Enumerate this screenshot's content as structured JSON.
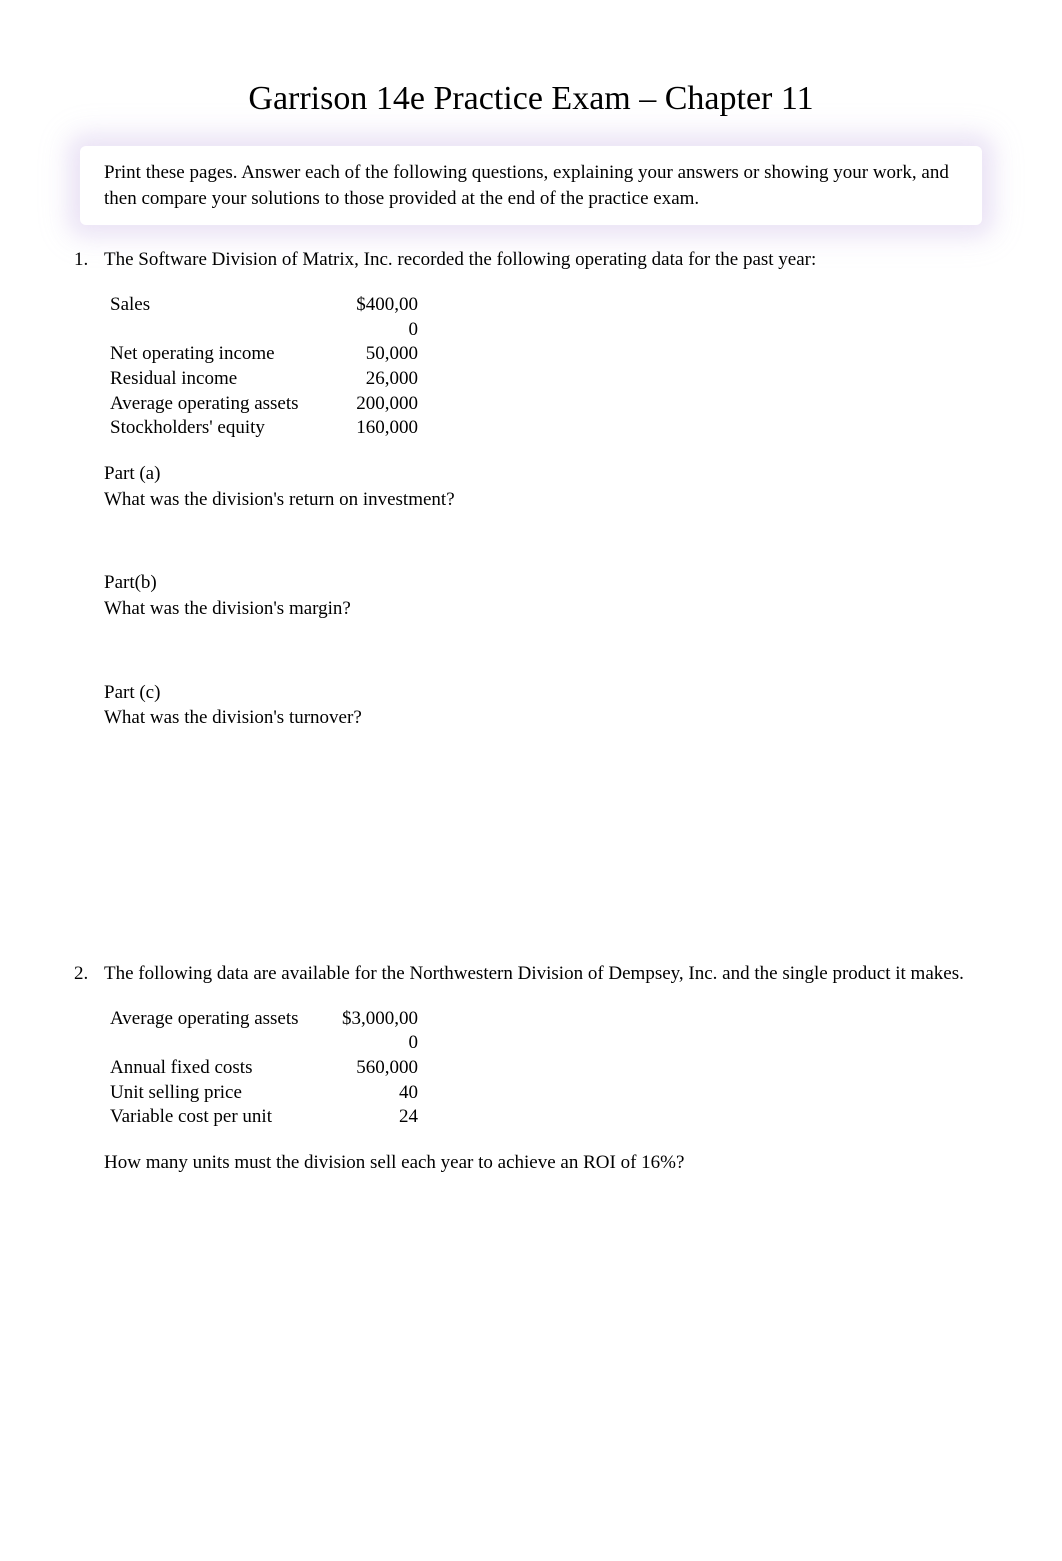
{
  "title": "Garrison 14e Practice Exam – Chapter 11",
  "instructions": "Print these pages. Answer each of the following questions, explaining your answers or showing your work, and then compare your solutions to those provided at the end of the practice exam.",
  "q1": {
    "number": "1.",
    "intro": "The Software Division of Matrix, Inc. recorded the following operating data for the past year:",
    "table": [
      {
        "label": "Sales",
        "value_top": "$400,00",
        "value_bottom": "0"
      },
      {
        "label": "Net operating income",
        "value_top": "50,000",
        "value_bottom": ""
      },
      {
        "label": "Residual income",
        "value_top": "26,000",
        "value_bottom": ""
      },
      {
        "label": "Average operating assets",
        "value_top": "200,000",
        "value_bottom": ""
      },
      {
        "label": "Stockholders' equity",
        "value_top": "160,000",
        "value_bottom": ""
      }
    ],
    "parts": {
      "a": {
        "label": "Part (a)",
        "question": "What was the division's return on investment?"
      },
      "b": {
        "label": "Part(b)",
        "question": "What was the division's margin?"
      },
      "c": {
        "label": "Part (c)",
        "question": "What was the division's turnover?"
      }
    }
  },
  "q2": {
    "number": "2.",
    "intro": "The following data are available for the Northwestern Division of Dempsey, Inc. and the single product it makes.",
    "table": [
      {
        "label": "Average operating assets",
        "value_top": "$3,000,00",
        "value_bottom": "0"
      },
      {
        "label": "Annual fixed costs",
        "value_top": "560,000",
        "value_bottom": ""
      },
      {
        "label": "Unit selling price",
        "value_top": "40",
        "value_bottom": ""
      },
      {
        "label": "Variable cost per unit",
        "value_top": "24",
        "value_bottom": ""
      }
    ],
    "final_question": "How many units must the division sell each year to achieve an ROI of 16%?"
  }
}
